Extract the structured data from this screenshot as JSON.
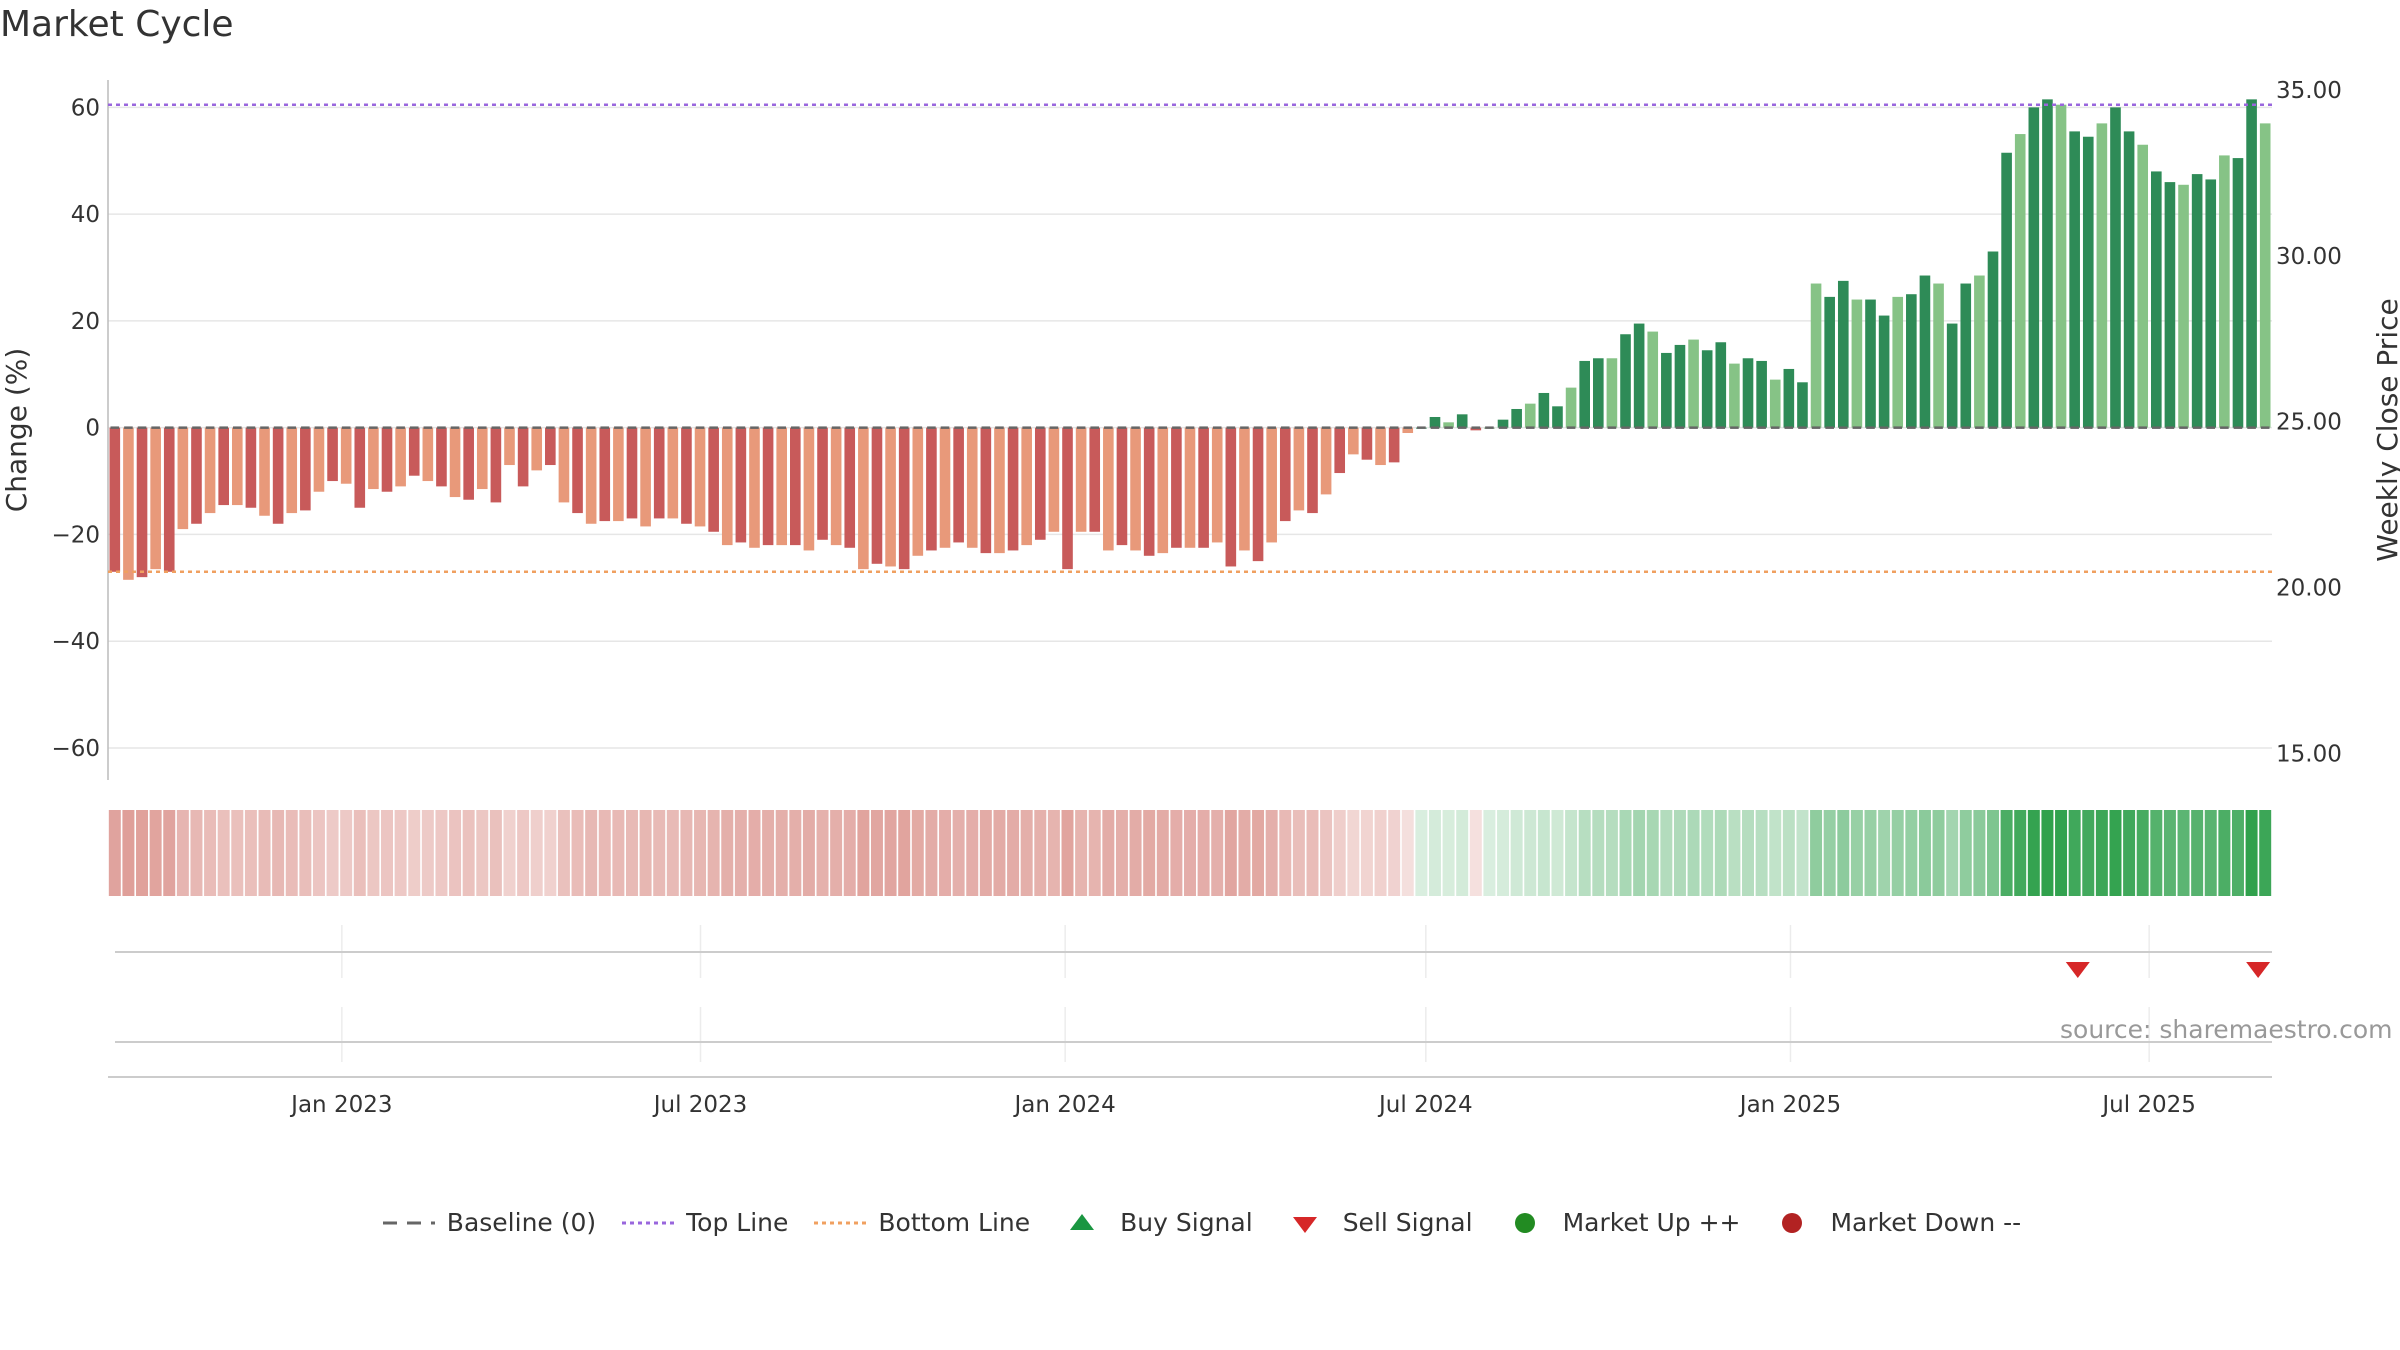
{
  "chart_data": {
    "type": "bar",
    "title": "Market Cycle",
    "ylabel_left": "Change (%)",
    "ylabel_right": "Weekly Close Price",
    "ylim_left": [
      -66,
      67
    ],
    "ylim_right": [
      14.2,
      35.6
    ],
    "yticks_left": [
      "60",
      "40",
      "20",
      "0",
      "−20",
      "−40",
      "−60"
    ],
    "ytick_values_left": [
      60,
      40,
      20,
      0,
      -20,
      -40,
      -60
    ],
    "yticks_right": [
      "35.00",
      "30.00",
      "25.00",
      "20.00",
      "15.00"
    ],
    "ytick_values_right": [
      35,
      30,
      25,
      20,
      15
    ],
    "xticks": [
      "Jan 2023",
      "Jul 2023",
      "Jan 2024",
      "Jul 2024",
      "Jan 2025",
      "Jul 2025"
    ],
    "x_start": "2022-09-05",
    "x_end": "2025-09-01",
    "xtick_dates": [
      "2023-01-01",
      "2023-07-01",
      "2024-01-01",
      "2024-07-01",
      "2025-01-01",
      "2025-07-01"
    ],
    "top_line": 60.5,
    "bottom_line": -27,
    "baseline": 0,
    "values": [
      -27,
      -28.5,
      -28,
      -26.5,
      -27,
      -19,
      -18,
      -16,
      -14.5,
      -14.5,
      -15,
      -16.5,
      -18,
      -16,
      -15.5,
      -12,
      -10,
      -10.5,
      -15,
      -11.5,
      -12,
      -11,
      -9,
      -10,
      -11,
      -13,
      -13.5,
      -11.5,
      -14,
      -7,
      -11,
      -8,
      -7,
      -14,
      -16,
      -18,
      -17.5,
      -17.5,
      -17,
      -18.5,
      -17,
      -17,
      -18,
      -18.5,
      -19.5,
      -22,
      -21.5,
      -22.5,
      -22,
      -22,
      -22,
      -23,
      -21,
      -22,
      -22.5,
      -26.5,
      -25.5,
      -26,
      -26.5,
      -24,
      -23,
      -22.5,
      -21.5,
      -22.5,
      -23.5,
      -23.5,
      -23,
      -22,
      -21,
      -19.5,
      -26.5,
      -19.5,
      -19.5,
      -23,
      -22,
      -23,
      -24,
      -23.5,
      -22.5,
      -22.5,
      -22.5,
      -21.5,
      -26,
      -23,
      -25,
      -21.5,
      -17.5,
      -15.5,
      -16,
      -12.5,
      -8.5,
      -5,
      -6,
      -7,
      -6.5,
      -1,
      0,
      2,
      1,
      2.5,
      -0.5,
      0,
      1.5,
      3.5,
      4.5,
      6.5,
      4,
      7.5,
      12.5,
      13,
      13,
      17.5,
      19.5,
      18,
      14,
      15.5,
      16.5,
      14.5,
      16,
      12,
      13,
      12.5,
      9,
      11,
      8.5,
      27,
      24.5,
      27.5,
      24,
      24,
      21,
      24.5,
      25,
      28.5,
      27,
      19.5,
      27,
      28.5,
      33,
      51.5,
      55,
      60,
      61.5,
      60.5,
      55.5,
      54.5,
      57,
      60,
      55.5,
      53,
      48,
      46,
      45.5,
      47.5,
      46.5,
      51,
      50.5,
      61.5,
      57
    ],
    "sell_signal_dates": [
      "2025-05-26",
      "2025-08-25"
    ],
    "buy_signal_dates": [],
    "legend": [
      "Baseline (0)",
      "Top Line",
      "Bottom Line",
      "Buy Signal",
      "Sell Signal",
      "Market Up ++",
      "Market Down --"
    ],
    "colors": {
      "down_dark": "#c85a5a",
      "down_light": "#e8997a",
      "up_dark": "#2e8b57",
      "up_light": "#86c386",
      "top_line": "#9966dd",
      "bottom_line": "#f0a060",
      "baseline": "#666666",
      "sell": "#d62728",
      "buy": "#1a9641",
      "market_up": "#228b22",
      "market_down": "#b22222"
    }
  },
  "source": "source: sharemaestro.com"
}
